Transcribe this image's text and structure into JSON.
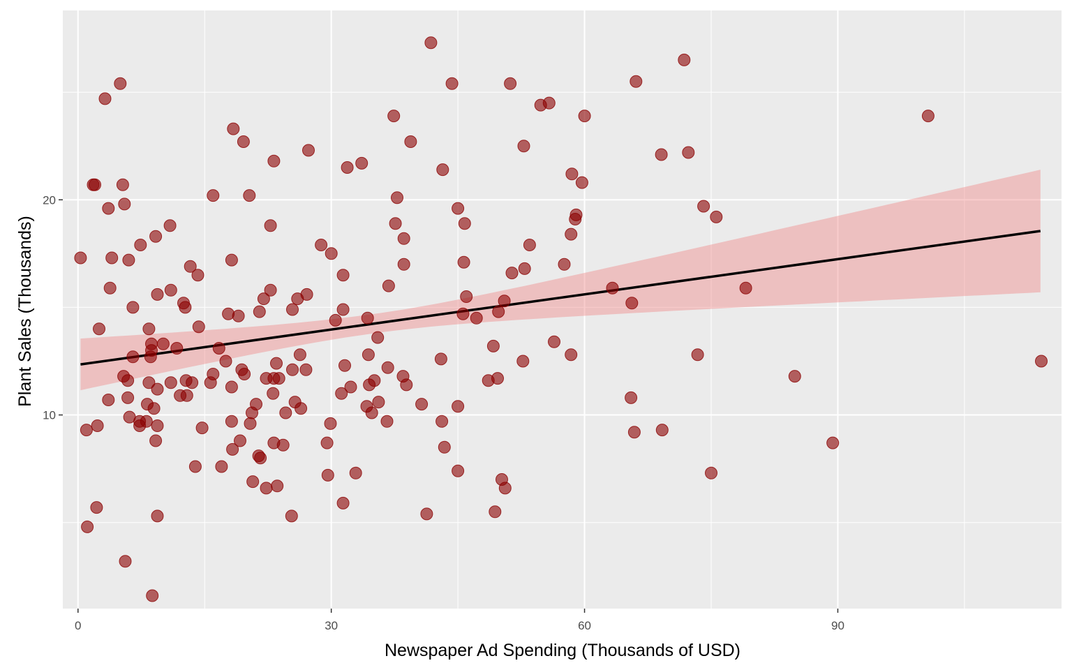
{
  "chart_data": {
    "type": "scatter",
    "title": "",
    "xlabel": "Newspaper Ad Spending (Thousands of USD)",
    "ylabel": "Plant Sales  (Thousands)",
    "xlim": [
      -1.8,
      116.5
    ],
    "ylim": [
      1.0,
      28.8
    ],
    "x_ticks": [
      0,
      30,
      60,
      90
    ],
    "x_tick_labels": [
      "0",
      "30",
      "60",
      "90"
    ],
    "x_minor_ticks": [
      15,
      45,
      75,
      105
    ],
    "y_ticks": [
      10,
      20
    ],
    "y_tick_labels": [
      "10",
      "20"
    ],
    "y_minor_ticks": [
      5,
      15,
      25
    ],
    "grid": true,
    "legend": "none",
    "colors": {
      "panel": "#ebebeb",
      "grid": "#ffffff",
      "point_fill": "#8b0000",
      "point_opacity": 0.6,
      "ribbon_fill": "#f08080",
      "ribbon_opacity": 0.4,
      "fit_line": "#000000"
    },
    "fit": {
      "x": [
        0.3,
        114.0
      ],
      "y": [
        12.35,
        18.55
      ],
      "ci_lower": [
        11.15,
        15.75
      ],
      "ci_upper": [
        13.55,
        21.45
      ],
      "ci_pivot_x": 35
    },
    "points": [
      [
        0.3,
        17.3
      ],
      [
        1.0,
        9.3
      ],
      [
        1.1,
        4.8
      ],
      [
        1.8,
        20.7
      ],
      [
        2.0,
        20.7
      ],
      [
        2.2,
        5.7
      ],
      [
        2.3,
        9.5
      ],
      [
        2.5,
        14.0
      ],
      [
        3.2,
        24.7
      ],
      [
        3.6,
        19.6
      ],
      [
        3.6,
        10.7
      ],
      [
        3.8,
        15.9
      ],
      [
        4.0,
        17.3
      ],
      [
        5.0,
        25.4
      ],
      [
        5.3,
        20.7
      ],
      [
        5.4,
        11.8
      ],
      [
        5.5,
        19.8
      ],
      [
        5.6,
        3.2
      ],
      [
        5.9,
        10.8
      ],
      [
        5.9,
        11.6
      ],
      [
        6.0,
        17.2
      ],
      [
        6.1,
        9.9
      ],
      [
        6.5,
        15.0
      ],
      [
        6.5,
        12.7
      ],
      [
        7.3,
        9.7
      ],
      [
        7.3,
        9.5
      ],
      [
        7.4,
        17.9
      ],
      [
        8.1,
        9.7
      ],
      [
        8.2,
        10.5
      ],
      [
        8.4,
        14.0
      ],
      [
        8.4,
        11.5
      ],
      [
        8.6,
        12.7
      ],
      [
        8.7,
        13.0
      ],
      [
        8.7,
        13.3
      ],
      [
        8.8,
        1.6
      ],
      [
        9.0,
        10.3
      ],
      [
        9.2,
        8.8
      ],
      [
        9.2,
        18.3
      ],
      [
        9.4,
        11.2
      ],
      [
        9.4,
        9.5
      ],
      [
        9.4,
        15.6
      ],
      [
        9.4,
        5.3
      ],
      [
        10.1,
        13.3
      ],
      [
        10.9,
        18.8
      ],
      [
        11.0,
        15.8
      ],
      [
        11.0,
        11.5
      ],
      [
        11.7,
        13.1
      ],
      [
        12.1,
        10.9
      ],
      [
        12.5,
        15.2
      ],
      [
        12.7,
        15.0
      ],
      [
        12.8,
        11.6
      ],
      [
        12.9,
        10.9
      ],
      [
        13.3,
        16.9
      ],
      [
        13.5,
        11.5
      ],
      [
        13.9,
        7.6
      ],
      [
        14.2,
        16.5
      ],
      [
        14.3,
        14.1
      ],
      [
        14.7,
        9.4
      ],
      [
        15.7,
        11.5
      ],
      [
        16.0,
        20.2
      ],
      [
        16.0,
        11.9
      ],
      [
        16.7,
        13.1
      ],
      [
        17.0,
        7.6
      ],
      [
        17.5,
        12.5
      ],
      [
        17.8,
        14.7
      ],
      [
        18.2,
        17.2
      ],
      [
        18.2,
        11.3
      ],
      [
        18.2,
        9.7
      ],
      [
        18.3,
        8.4
      ],
      [
        18.4,
        23.3
      ],
      [
        19.0,
        14.6
      ],
      [
        19.2,
        8.8
      ],
      [
        19.4,
        12.1
      ],
      [
        19.6,
        22.7
      ],
      [
        19.7,
        11.9
      ],
      [
        20.3,
        20.2
      ],
      [
        20.4,
        9.6
      ],
      [
        20.6,
        10.1
      ],
      [
        20.7,
        6.9
      ],
      [
        21.1,
        10.5
      ],
      [
        21.4,
        8.1
      ],
      [
        21.5,
        14.8
      ],
      [
        21.6,
        8.0
      ],
      [
        22.0,
        15.4
      ],
      [
        22.3,
        11.7
      ],
      [
        22.3,
        6.6
      ],
      [
        22.8,
        18.8
      ],
      [
        22.8,
        15.8
      ],
      [
        23.1,
        11.0
      ],
      [
        23.2,
        11.7
      ],
      [
        23.2,
        21.8
      ],
      [
        23.2,
        8.7
      ],
      [
        23.5,
        12.4
      ],
      [
        23.6,
        6.7
      ],
      [
        23.8,
        11.7
      ],
      [
        24.3,
        8.6
      ],
      [
        24.6,
        10.1
      ],
      [
        25.3,
        5.3
      ],
      [
        25.4,
        12.1
      ],
      [
        25.4,
        14.9
      ],
      [
        25.7,
        10.6
      ],
      [
        26.0,
        15.4
      ],
      [
        26.3,
        12.8
      ],
      [
        26.4,
        10.3
      ],
      [
        27.0,
        12.1
      ],
      [
        27.1,
        15.6
      ],
      [
        27.3,
        22.3
      ],
      [
        28.8,
        17.9
      ],
      [
        29.5,
        8.7
      ],
      [
        29.6,
        7.2
      ],
      [
        29.9,
        9.6
      ],
      [
        30.0,
        17.5
      ],
      [
        30.5,
        14.4
      ],
      [
        31.2,
        11.0
      ],
      [
        31.4,
        5.9
      ],
      [
        31.4,
        14.9
      ],
      [
        31.4,
        16.5
      ],
      [
        31.6,
        12.3
      ],
      [
        31.9,
        21.5
      ],
      [
        32.3,
        11.3
      ],
      [
        32.9,
        7.3
      ],
      [
        33.6,
        21.7
      ],
      [
        34.2,
        10.4
      ],
      [
        34.3,
        14.5
      ],
      [
        34.4,
        12.8
      ],
      [
        34.5,
        11.4
      ],
      [
        34.8,
        10.1
      ],
      [
        35.1,
        11.6
      ],
      [
        35.5,
        13.6
      ],
      [
        35.6,
        10.6
      ],
      [
        36.6,
        9.7
      ],
      [
        36.7,
        12.2
      ],
      [
        36.8,
        16.0
      ],
      [
        37.4,
        23.9
      ],
      [
        37.6,
        18.9
      ],
      [
        37.8,
        20.1
      ],
      [
        38.5,
        11.8
      ],
      [
        38.6,
        18.2
      ],
      [
        38.6,
        17.0
      ],
      [
        38.9,
        11.4
      ],
      [
        39.4,
        22.7
      ],
      [
        40.7,
        10.5
      ],
      [
        41.3,
        5.4
      ],
      [
        41.8,
        27.3
      ],
      [
        43.0,
        12.6
      ],
      [
        43.1,
        9.7
      ],
      [
        43.2,
        21.4
      ],
      [
        43.4,
        8.5
      ],
      [
        44.3,
        25.4
      ],
      [
        45.0,
        19.6
      ],
      [
        45.0,
        10.4
      ],
      [
        45.0,
        7.4
      ],
      [
        45.6,
        14.7
      ],
      [
        45.7,
        17.1
      ],
      [
        45.8,
        18.9
      ],
      [
        46.0,
        15.5
      ],
      [
        47.2,
        14.5
      ],
      [
        48.6,
        11.6
      ],
      [
        49.2,
        13.2
      ],
      [
        49.4,
        5.5
      ],
      [
        49.7,
        11.7
      ],
      [
        49.8,
        14.8
      ],
      [
        50.2,
        7.0
      ],
      [
        50.5,
        15.3
      ],
      [
        50.6,
        6.6
      ],
      [
        51.2,
        25.4
      ],
      [
        51.4,
        16.6
      ],
      [
        52.7,
        12.5
      ],
      [
        52.8,
        22.5
      ],
      [
        52.9,
        16.8
      ],
      [
        53.5,
        17.9
      ],
      [
        54.8,
        24.4
      ],
      [
        55.8,
        24.5
      ],
      [
        56.4,
        13.4
      ],
      [
        57.6,
        17.0
      ],
      [
        58.4,
        18.4
      ],
      [
        58.4,
        12.8
      ],
      [
        58.5,
        21.2
      ],
      [
        58.9,
        19.1
      ],
      [
        59.0,
        19.3
      ],
      [
        59.7,
        20.8
      ],
      [
        60.0,
        23.9
      ],
      [
        63.3,
        15.9
      ],
      [
        65.5,
        10.8
      ],
      [
        65.6,
        15.2
      ],
      [
        65.9,
        9.2
      ],
      [
        66.1,
        25.5
      ],
      [
        69.1,
        22.1
      ],
      [
        69.2,
        9.3
      ],
      [
        71.8,
        26.5
      ],
      [
        72.3,
        22.2
      ],
      [
        73.4,
        12.8
      ],
      [
        74.1,
        19.7
      ],
      [
        75.0,
        7.3
      ],
      [
        75.6,
        19.2
      ],
      [
        79.1,
        15.9
      ],
      [
        84.9,
        11.8
      ],
      [
        89.4,
        8.7
      ],
      [
        100.7,
        23.9
      ],
      [
        114.1,
        12.5
      ]
    ]
  }
}
